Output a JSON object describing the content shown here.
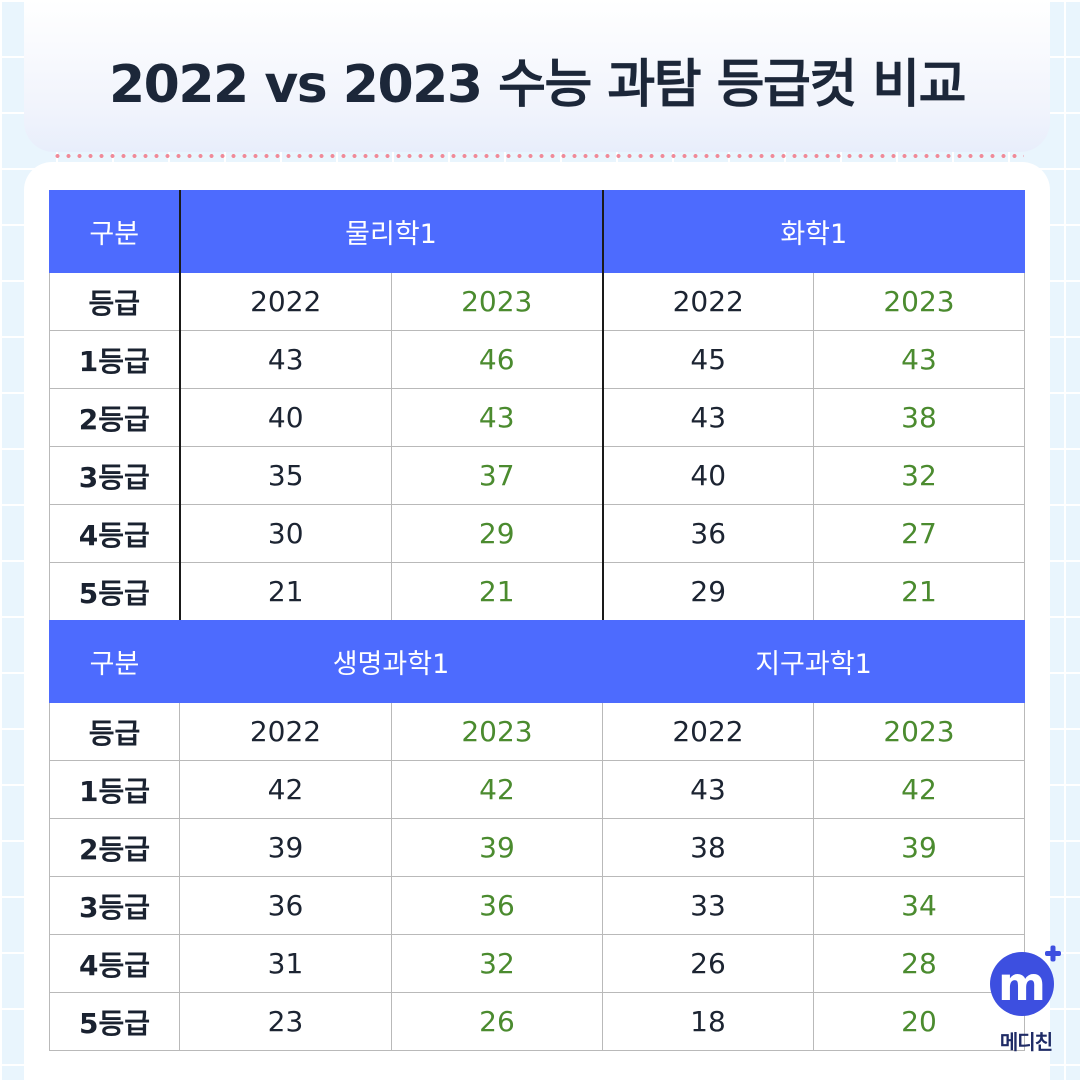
{
  "title": "2022 vs 2023 수능 과탐 등급컷 비교",
  "accent_color": "#4d6bfe",
  "year2023_color": "#4b8b2f",
  "tables": [
    {
      "header_label": "구분",
      "subjects": [
        "물리학1",
        "화학1"
      ],
      "subheader": [
        "등급",
        "2022",
        "2023",
        "2022",
        "2023"
      ],
      "rows": [
        [
          "1등급",
          "43",
          "46",
          "45",
          "43"
        ],
        [
          "2등급",
          "40",
          "43",
          "43",
          "38"
        ],
        [
          "3등급",
          "35",
          "37",
          "40",
          "32"
        ],
        [
          "4등급",
          "30",
          "29",
          "36",
          "27"
        ],
        [
          "5등급",
          "21",
          "21",
          "29",
          "21"
        ]
      ]
    },
    {
      "header_label": "구분",
      "subjects": [
        "생명과학1",
        "지구과학1"
      ],
      "subheader": [
        "등급",
        "2022",
        "2023",
        "2022",
        "2023"
      ],
      "rows": [
        [
          "1등급",
          "42",
          "42",
          "43",
          "42"
        ],
        [
          "2등급",
          "39",
          "39",
          "38",
          "39"
        ],
        [
          "3등급",
          "36",
          "36",
          "33",
          "34"
        ],
        [
          "4등급",
          "31",
          "32",
          "26",
          "28"
        ],
        [
          "5등급",
          "23",
          "26",
          "18",
          "20"
        ]
      ]
    }
  ],
  "logo": {
    "icon": "medichin-m-plus-icon",
    "mark": "m",
    "name": "메디친"
  }
}
